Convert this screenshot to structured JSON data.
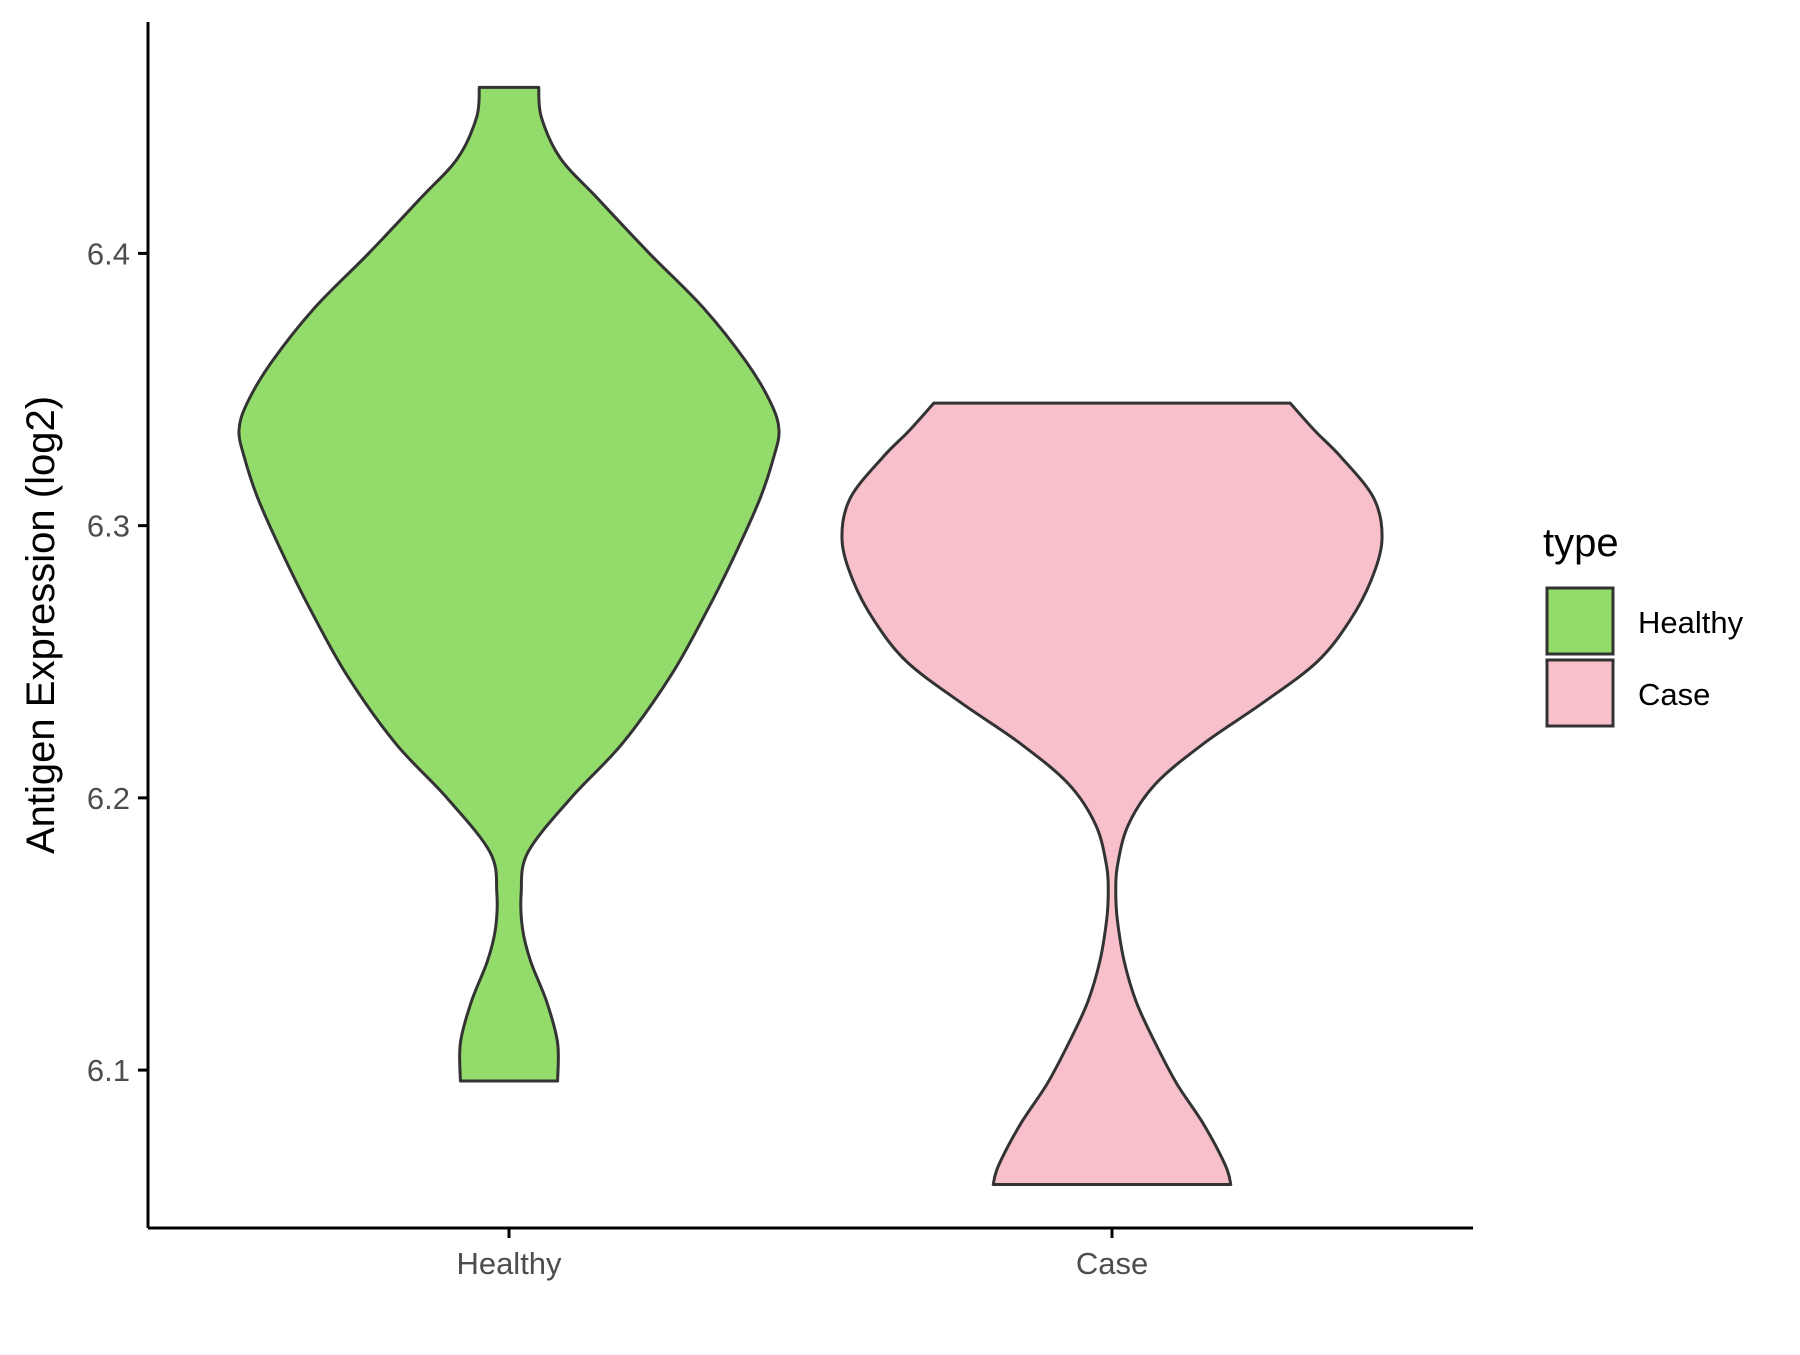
{
  "chart_data": {
    "type": "violin",
    "title": "",
    "xlabel": "",
    "ylabel": "Antigen Expression (log2)",
    "ylim": [
      6.042,
      6.485
    ],
    "yticks": [
      6.1,
      6.2,
      6.3,
      6.4
    ],
    "ytick_labels": [
      "6.1",
      "6.2",
      "6.3",
      "6.4"
    ],
    "grid": false,
    "categories": [
      "Healthy",
      "Case"
    ],
    "legend": {
      "title": "type",
      "placement": "right",
      "items": [
        {
          "label": "Healthy",
          "color": "#93DC6B"
        },
        {
          "label": "Case",
          "color": "#F8C0CB"
        }
      ]
    },
    "series": [
      {
        "category": "Healthy",
        "color": "#93DC6B",
        "min": 6.096,
        "max": 6.461,
        "density_profile": [
          [
            6.096,
            0.18
          ],
          [
            6.11,
            0.18
          ],
          [
            6.125,
            0.14
          ],
          [
            6.14,
            0.08
          ],
          [
            6.152,
            0.05
          ],
          [
            6.165,
            0.045
          ],
          [
            6.18,
            0.07
          ],
          [
            6.2,
            0.23
          ],
          [
            6.22,
            0.42
          ],
          [
            6.245,
            0.6
          ],
          [
            6.27,
            0.74
          ],
          [
            6.29,
            0.84
          ],
          [
            6.31,
            0.93
          ],
          [
            6.325,
            0.98
          ],
          [
            6.335,
            1.0
          ],
          [
            6.345,
            0.97
          ],
          [
            6.36,
            0.88
          ],
          [
            6.38,
            0.72
          ],
          [
            6.4,
            0.52
          ],
          [
            6.42,
            0.33
          ],
          [
            6.435,
            0.19
          ],
          [
            6.45,
            0.12
          ],
          [
            6.461,
            0.11
          ]
        ]
      },
      {
        "category": "Case",
        "color": "#F8C0CB",
        "min": 6.058,
        "max": 6.345,
        "density_profile": [
          [
            6.058,
            0.44
          ],
          [
            6.065,
            0.42
          ],
          [
            6.08,
            0.34
          ],
          [
            6.095,
            0.24
          ],
          [
            6.11,
            0.16
          ],
          [
            6.125,
            0.09
          ],
          [
            6.14,
            0.045
          ],
          [
            6.155,
            0.02
          ],
          [
            6.165,
            0.014
          ],
          [
            6.175,
            0.02
          ],
          [
            6.19,
            0.06
          ],
          [
            6.205,
            0.16
          ],
          [
            6.22,
            0.34
          ],
          [
            6.235,
            0.56
          ],
          [
            6.25,
            0.76
          ],
          [
            6.265,
            0.88
          ],
          [
            6.28,
            0.96
          ],
          [
            6.295,
            1.0
          ],
          [
            6.31,
            0.97
          ],
          [
            6.325,
            0.85
          ],
          [
            6.335,
            0.75
          ],
          [
            6.345,
            0.66
          ]
        ]
      }
    ]
  }
}
